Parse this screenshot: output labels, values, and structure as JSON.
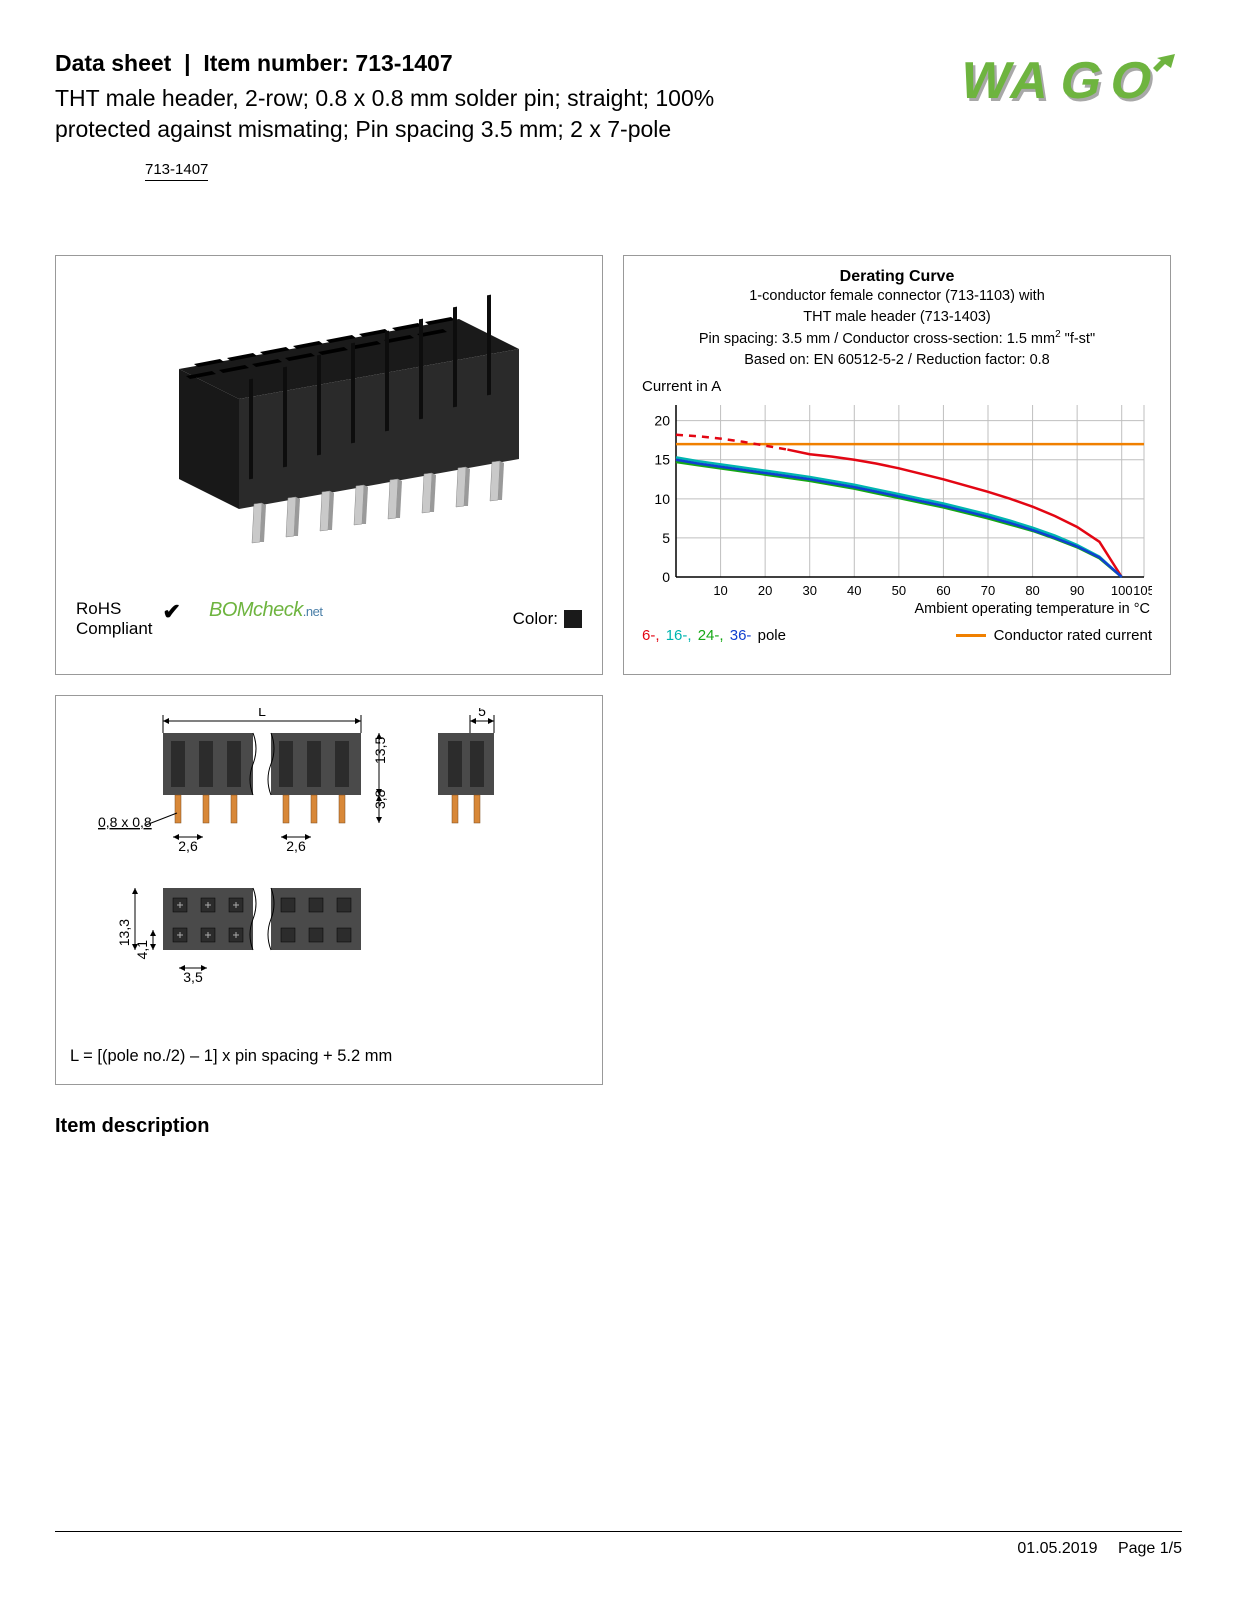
{
  "header": {
    "datasheet_label": "Data sheet",
    "item_label": "Item number:",
    "item_number": "713-1407",
    "subtitle": "THT male header, 2-row; 0.8 x 0.8 mm solder pin; straight; 100% protected against mismating; Pin spacing 3.5 mm; 2 x 7-pole",
    "item_number_box": "713-1407"
  },
  "logo": {
    "text": "WAGO",
    "fill": "#6eb43f",
    "shadow": "#a8a8a8"
  },
  "product_panel": {
    "rohs_line1": "RoHS",
    "rohs_line2": "Compliant",
    "bomcheck_main": "BOMcheck",
    "bomcheck_suffix": ".net",
    "color_label": "Color:",
    "color_swatch": "#1a1a1a",
    "connector_color": "#2a2a2a"
  },
  "chart": {
    "title": "Derating Curve",
    "sub1": "1-conductor female connector (713-1103) with",
    "sub2": "THT male header (713-1403)",
    "sub3_a": "Pin spacing: 3.5 mm / Conductor cross-section: 1.5 mm",
    "sub3_b": " \"f-st\"",
    "sub4": "Based on: EN 60512-5-2 / Reduction factor: 0.8",
    "ylabel": "Current in A",
    "xlabel": "Ambient operating temperature in °C",
    "ylim": [
      0,
      22
    ],
    "yticks": [
      0,
      5,
      10,
      15,
      20
    ],
    "xlim": [
      0,
      105
    ],
    "xticks": [
      10,
      20,
      30,
      40,
      50,
      60,
      70,
      80,
      90,
      100,
      105
    ],
    "grid_color": "#bfbfbf",
    "axis_color": "#000000",
    "series": {
      "6pole": {
        "color": "#e30613",
        "dashed_until": 25,
        "points": [
          [
            0,
            18.2
          ],
          [
            5,
            18.0
          ],
          [
            10,
            17.7
          ],
          [
            15,
            17.3
          ],
          [
            20,
            16.8
          ],
          [
            25,
            16.3
          ],
          [
            30,
            15.7
          ],
          [
            35,
            15.4
          ],
          [
            40,
            15.0
          ],
          [
            45,
            14.5
          ],
          [
            50,
            13.9
          ],
          [
            55,
            13.2
          ],
          [
            60,
            12.5
          ],
          [
            65,
            11.7
          ],
          [
            70,
            10.9
          ],
          [
            75,
            10.0
          ],
          [
            80,
            9.0
          ],
          [
            85,
            7.8
          ],
          [
            90,
            6.4
          ],
          [
            95,
            4.5
          ],
          [
            100,
            0
          ]
        ]
      },
      "16pole": {
        "color": "#00b5b0",
        "points": [
          [
            0,
            15.3
          ],
          [
            5,
            14.8
          ],
          [
            10,
            14.4
          ],
          [
            15,
            14.0
          ],
          [
            20,
            13.6
          ],
          [
            25,
            13.2
          ],
          [
            30,
            12.8
          ],
          [
            35,
            12.3
          ],
          [
            40,
            11.8
          ],
          [
            45,
            11.2
          ],
          [
            50,
            10.6
          ],
          [
            55,
            10.0
          ],
          [
            60,
            9.4
          ],
          [
            65,
            8.7
          ],
          [
            70,
            8.0
          ],
          [
            75,
            7.2
          ],
          [
            80,
            6.3
          ],
          [
            85,
            5.3
          ],
          [
            90,
            4.1
          ],
          [
            95,
            2.6
          ],
          [
            100,
            0
          ]
        ]
      },
      "24pole": {
        "color": "#15a815",
        "points": [
          [
            0,
            14.7
          ],
          [
            5,
            14.3
          ],
          [
            10,
            13.9
          ],
          [
            15,
            13.5
          ],
          [
            20,
            13.1
          ],
          [
            25,
            12.7
          ],
          [
            30,
            12.3
          ],
          [
            35,
            11.8
          ],
          [
            40,
            11.3
          ],
          [
            45,
            10.7
          ],
          [
            50,
            10.1
          ],
          [
            55,
            9.5
          ],
          [
            60,
            8.9
          ],
          [
            65,
            8.2
          ],
          [
            70,
            7.5
          ],
          [
            75,
            6.7
          ],
          [
            80,
            5.9
          ],
          [
            85,
            4.9
          ],
          [
            90,
            3.8
          ],
          [
            95,
            2.4
          ],
          [
            100,
            0
          ]
        ]
      },
      "36pole": {
        "color": "#1040d0",
        "points": [
          [
            0,
            15.0
          ],
          [
            5,
            14.5
          ],
          [
            10,
            14.1
          ],
          [
            15,
            13.7
          ],
          [
            20,
            13.3
          ],
          [
            25,
            12.9
          ],
          [
            30,
            12.5
          ],
          [
            35,
            12.0
          ],
          [
            40,
            11.5
          ],
          [
            45,
            10.9
          ],
          [
            50,
            10.3
          ],
          [
            55,
            9.7
          ],
          [
            60,
            9.1
          ],
          [
            65,
            8.4
          ],
          [
            70,
            7.7
          ],
          [
            75,
            6.9
          ],
          [
            80,
            6.0
          ],
          [
            85,
            5.0
          ],
          [
            90,
            3.9
          ],
          [
            95,
            2.5
          ],
          [
            100,
            0
          ]
        ]
      },
      "rated": {
        "color": "#f08000",
        "value": 17
      }
    },
    "legend": {
      "p6": "6-,",
      "p16": "16-,",
      "p24": "24-,",
      "p36": "36-",
      "pole_suffix": "pole",
      "rated": "Conductor rated current"
    }
  },
  "drawing": {
    "dims": {
      "L": "L",
      "w5": "5",
      "h13_5": "13,5",
      "h3_8": "3,8",
      "pin": "0,8 x 0,8",
      "s2_6a": "2,6",
      "s2_6b": "2,6",
      "h13_3": "13,3",
      "h4_1": "4,1",
      "s3_5": "3,5"
    },
    "formula": "L = [(pole no./2) – 1] x pin spacing + 5.2 mm",
    "body_color": "#4a4a4a",
    "pin_color": "#d88838"
  },
  "section_heading": "Item description",
  "footer": {
    "date": "01.05.2019",
    "page": "Page 1/5"
  }
}
